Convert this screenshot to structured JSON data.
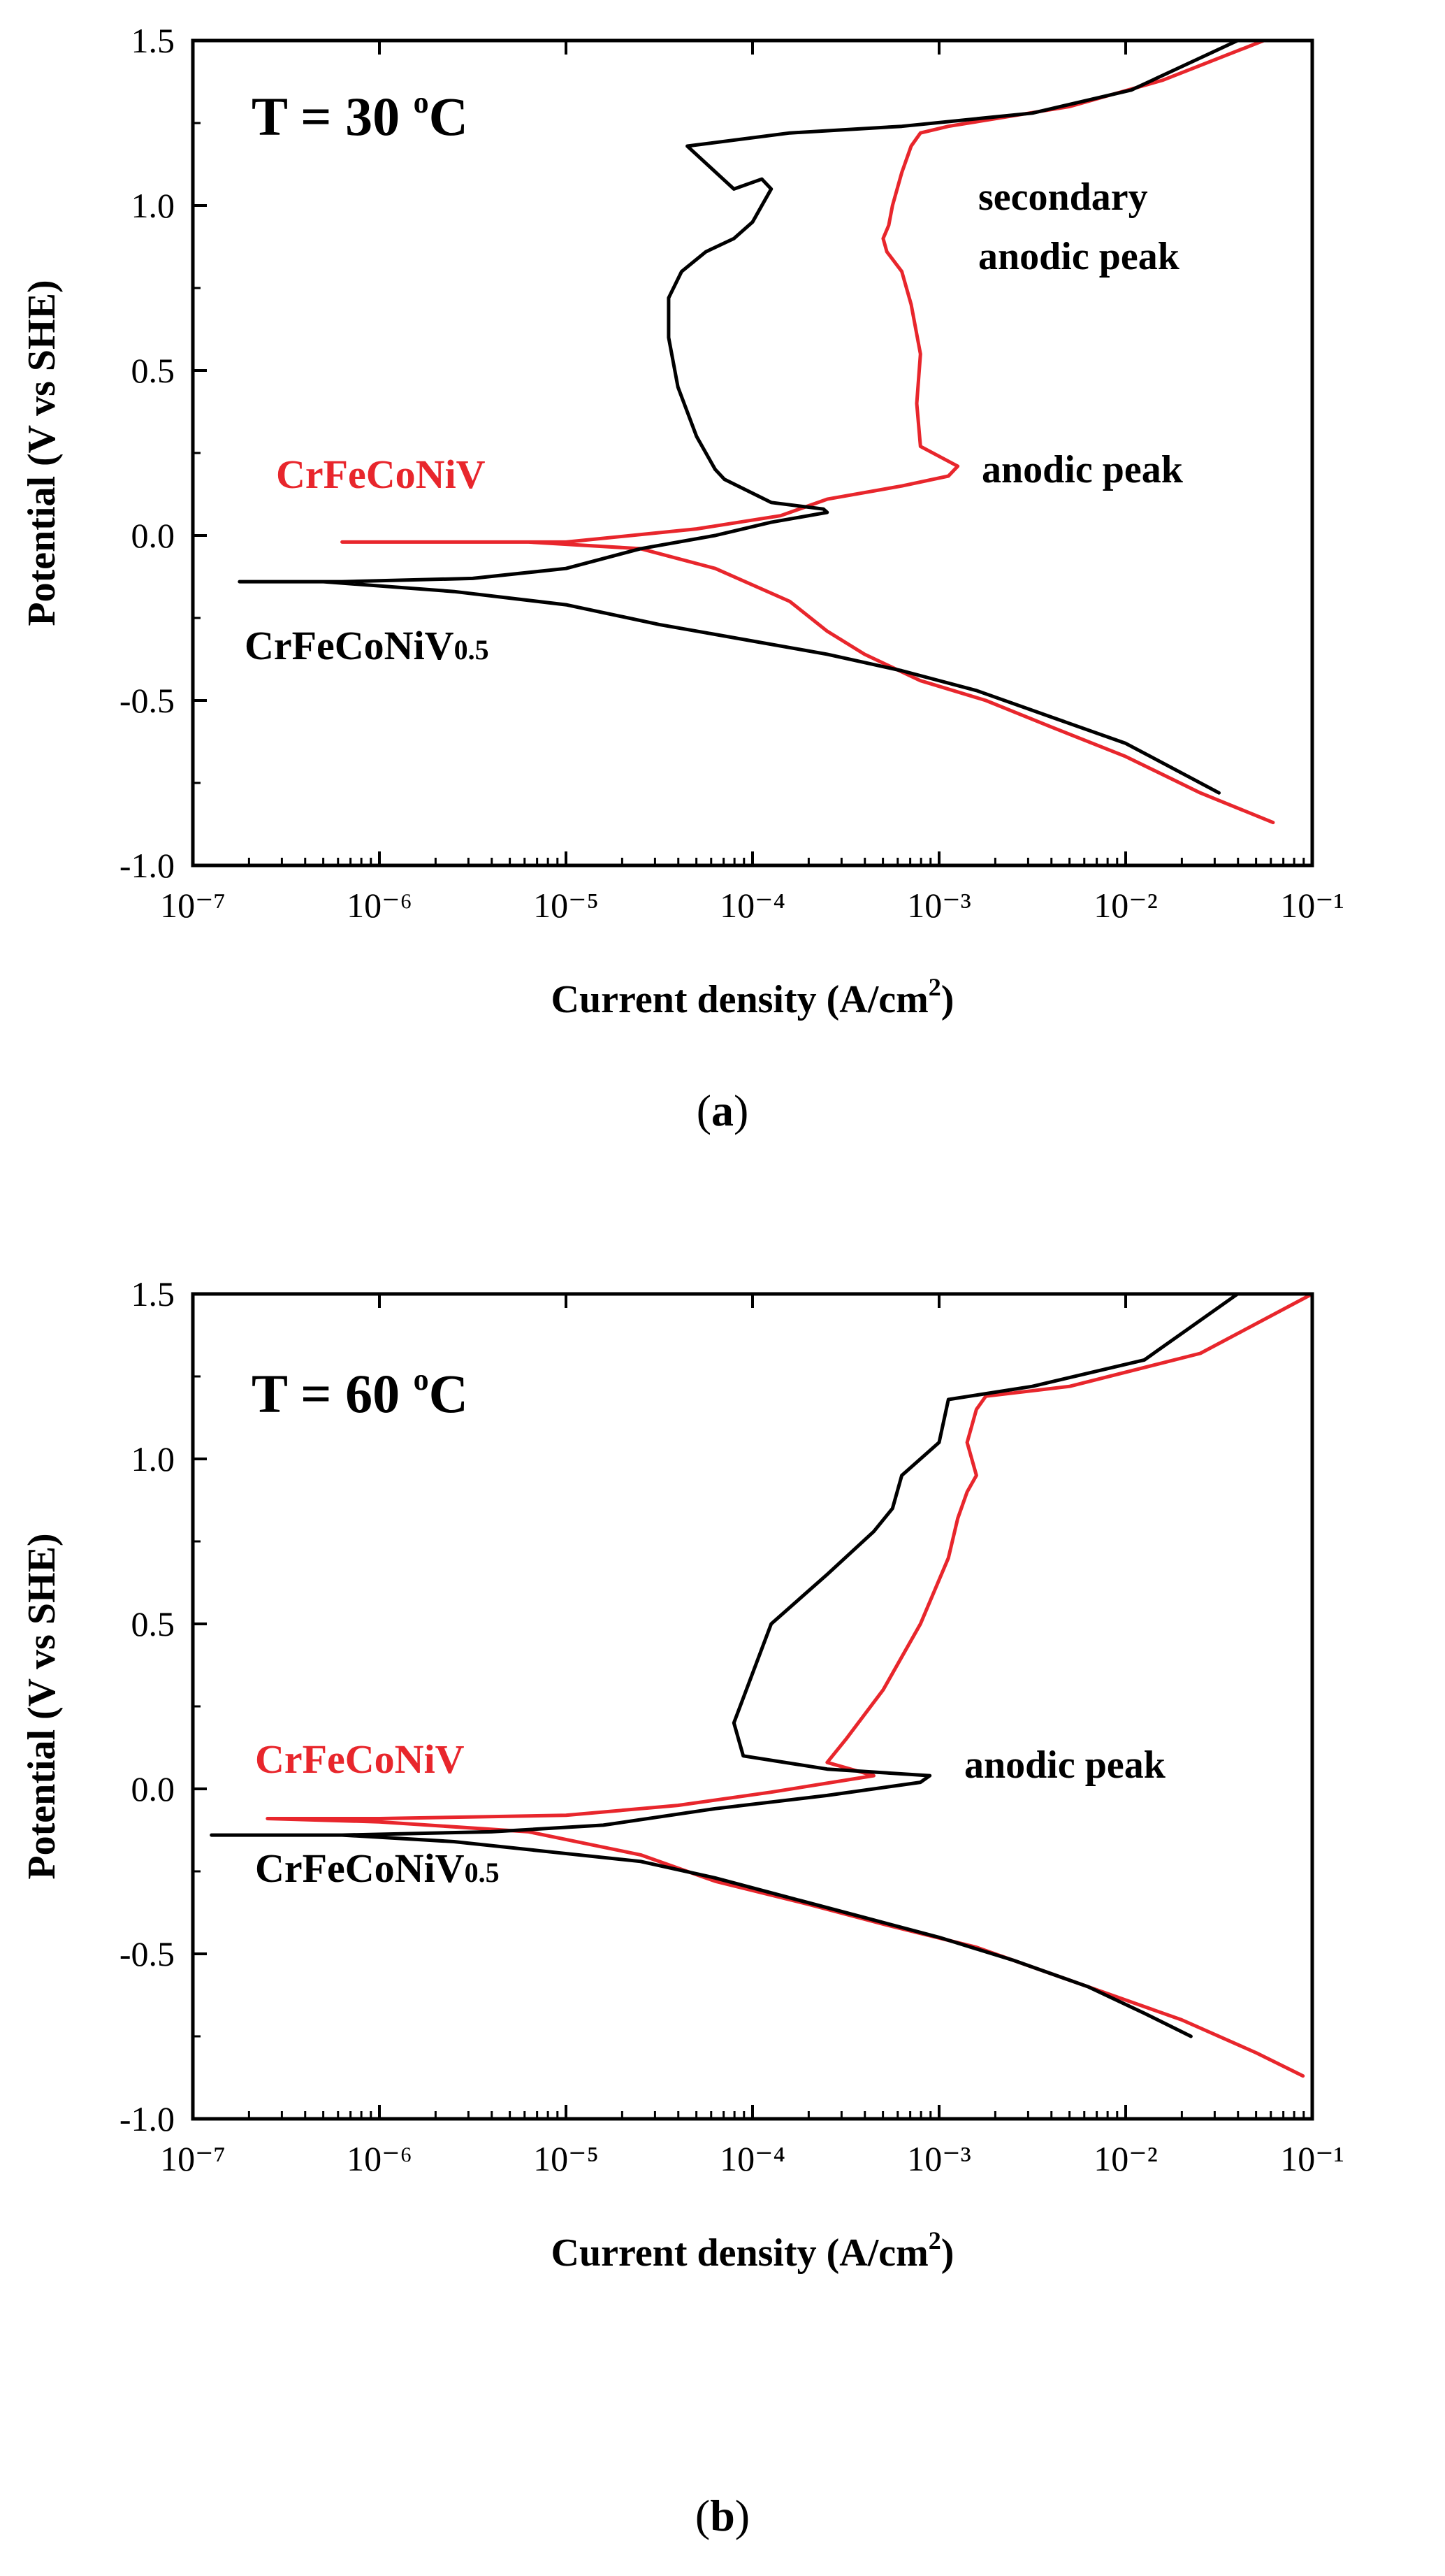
{
  "chart_data": [
    {
      "type": "line",
      "panel": "(a)",
      "caption_letter": "a",
      "title": "T = 30 °C",
      "temp_value": "30",
      "temp_unit": "C",
      "temp_sup": "o",
      "xlabel": "Current density (A/cm²)",
      "xlabel_main": "Current density (A/cm",
      "xlabel_sup": "2",
      "xlabel_close": ")",
      "ylabel": "Potential (V vs SHE)",
      "xscale": "log",
      "xlim_exp": [
        -7,
        -1
      ],
      "ylim": [
        -1.0,
        1.5
      ],
      "x_ticks": [
        "10⁻⁷",
        "10⁻⁶",
        "10⁻⁵",
        "10⁻⁴",
        "10⁻³",
        "10⁻²",
        "10⁻¹"
      ],
      "y_ticks": [
        "-1.0",
        "-0.5",
        "0.0",
        "0.5",
        "1.0",
        "1.5"
      ],
      "annotations": [
        "secondary",
        "anodic peak",
        "anodic peak"
      ],
      "series": [
        {
          "name": "CrFeCoNiV",
          "label_main": "CrFeCoNiV",
          "label_sub": "",
          "color": "#e8262c",
          "log_current": [
            -1.21,
            -1.6,
            -2.0,
            -2.4,
            -2.75,
            -3.1,
            -3.4,
            -3.6,
            -3.8,
            -4.2,
            -4.6,
            -5.2,
            -6.0,
            -6.2,
            -5.8,
            -5.0,
            -4.3,
            -3.85,
            -3.6,
            -3.2,
            -2.95,
            -2.9,
            -3.1,
            -3.12,
            -3.1,
            -3.15,
            -3.2,
            -3.28,
            -3.3,
            -3.27,
            -3.25,
            -3.2,
            -3.15,
            -3.1,
            -2.95,
            -2.3,
            -1.8,
            -1.26
          ],
          "potential": [
            -0.87,
            -0.78,
            -0.67,
            -0.58,
            -0.5,
            -0.44,
            -0.36,
            -0.29,
            -0.2,
            -0.1,
            -0.04,
            -0.02,
            -0.02,
            -0.02,
            -0.02,
            -0.02,
            0.02,
            0.06,
            0.11,
            0.15,
            0.18,
            0.21,
            0.27,
            0.4,
            0.55,
            0.7,
            0.8,
            0.86,
            0.9,
            0.94,
            1.0,
            1.1,
            1.18,
            1.22,
            1.24,
            1.3,
            1.38,
            1.5
          ]
        },
        {
          "name": "CrFeCoNiV0.5",
          "label_main": "CrFeCoNiV",
          "label_sub": "0.5",
          "color": "#000000",
          "log_current": [
            -1.5,
            -1.7,
            -2.0,
            -2.4,
            -2.8,
            -3.2,
            -3.6,
            -4.0,
            -4.5,
            -5.0,
            -5.6,
            -6.3,
            -6.75,
            -6.2,
            -5.5,
            -5.0,
            -4.6,
            -4.2,
            -3.9,
            -3.6,
            -3.62,
            -3.9,
            -4.15,
            -4.2,
            -4.3,
            -4.4,
            -4.45,
            -4.45,
            -4.38,
            -4.25,
            -4.1,
            -4.0,
            -3.95,
            -3.9,
            -3.95,
            -4.1,
            -4.35,
            -3.8,
            -3.2,
            -2.5,
            -1.97,
            -1.4
          ],
          "potential": [
            -0.78,
            -0.72,
            -0.63,
            -0.55,
            -0.47,
            -0.41,
            -0.36,
            -0.32,
            -0.27,
            -0.21,
            -0.17,
            -0.14,
            -0.14,
            -0.14,
            -0.13,
            -0.1,
            -0.04,
            0.0,
            0.04,
            0.07,
            0.08,
            0.1,
            0.17,
            0.2,
            0.3,
            0.45,
            0.6,
            0.72,
            0.8,
            0.86,
            0.9,
            0.95,
            1.0,
            1.05,
            1.08,
            1.05,
            1.18,
            1.22,
            1.24,
            1.28,
            1.35,
            1.5
          ]
        }
      ]
    },
    {
      "type": "line",
      "panel": "(b)",
      "caption_letter": "b",
      "title": "T = 60 °C",
      "temp_value": "60",
      "temp_unit": "C",
      "temp_sup": "o",
      "xlabel": "Current density (A/cm²)",
      "xlabel_main": "Current density (A/cm",
      "xlabel_sup": "2",
      "xlabel_close": ")",
      "ylabel": "Potential (V vs SHE)",
      "xscale": "log",
      "xlim_exp": [
        -7,
        -1
      ],
      "ylim": [
        -1.0,
        1.5
      ],
      "x_ticks": [
        "10⁻⁷",
        "10⁻⁶",
        "10⁻⁵",
        "10⁻⁴",
        "10⁻³",
        "10⁻²",
        "10⁻¹"
      ],
      "y_ticks": [
        "-1.0",
        "-0.5",
        "0.0",
        "0.5",
        "1.0",
        "1.5"
      ],
      "annotations": [
        "anodic peak"
      ],
      "series": [
        {
          "name": "CrFeCoNiV",
          "label_main": "CrFeCoNiV",
          "label_sub": "",
          "color": "#e8262c",
          "log_current": [
            -1.05,
            -1.3,
            -1.7,
            -2.2,
            -2.8,
            -3.3,
            -3.7,
            -4.2,
            -4.6,
            -5.2,
            -6.0,
            -6.6,
            -6.0,
            -5.0,
            -4.4,
            -3.9,
            -3.35,
            -3.6,
            -3.5,
            -3.3,
            -3.1,
            -2.95,
            -2.9,
            -2.85,
            -2.8,
            -2.85,
            -2.8,
            -2.75,
            -2.3,
            -1.6,
            -1.0
          ],
          "potential": [
            -0.87,
            -0.8,
            -0.7,
            -0.6,
            -0.48,
            -0.41,
            -0.35,
            -0.28,
            -0.2,
            -0.13,
            -0.1,
            -0.09,
            -0.09,
            -0.08,
            -0.05,
            -0.01,
            0.04,
            0.08,
            0.15,
            0.3,
            0.5,
            0.7,
            0.82,
            0.9,
            0.95,
            1.05,
            1.15,
            1.19,
            1.22,
            1.32,
            1.5
          ]
        },
        {
          "name": "CrFeCoNiV0.5",
          "label_main": "CrFeCoNiV",
          "label_sub": "0.5",
          "color": "#000000",
          "log_current": [
            -1.65,
            -1.9,
            -2.2,
            -2.6,
            -3.0,
            -3.4,
            -3.8,
            -4.2,
            -4.6,
            -5.1,
            -5.6,
            -6.2,
            -6.9,
            -6.2,
            -5.4,
            -4.8,
            -4.2,
            -3.6,
            -3.1,
            -3.05,
            -3.6,
            -4.05,
            -4.1,
            -4.0,
            -3.9,
            -3.6,
            -3.35,
            -3.25,
            -3.2,
            -3.0,
            -2.95,
            -2.5,
            -1.9,
            -1.4
          ],
          "potential": [
            -0.75,
            -0.68,
            -0.6,
            -0.52,
            -0.45,
            -0.39,
            -0.33,
            -0.27,
            -0.22,
            -0.19,
            -0.16,
            -0.14,
            -0.14,
            -0.14,
            -0.13,
            -0.11,
            -0.06,
            -0.02,
            0.02,
            0.04,
            0.06,
            0.1,
            0.2,
            0.35,
            0.5,
            0.65,
            0.78,
            0.85,
            0.95,
            1.05,
            1.18,
            1.22,
            1.3,
            1.5
          ]
        }
      ]
    }
  ]
}
